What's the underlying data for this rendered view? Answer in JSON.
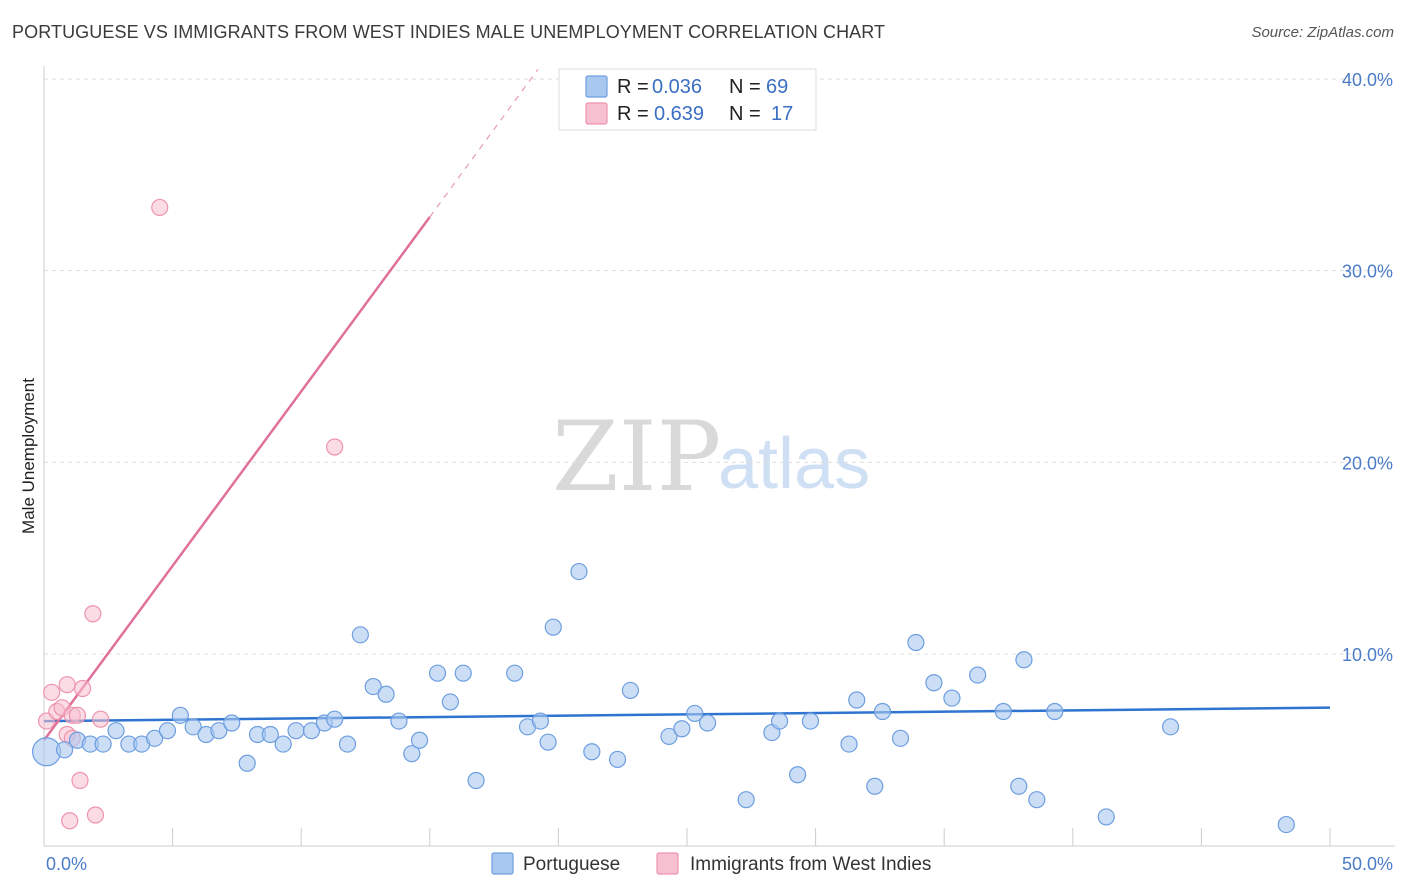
{
  "header": {
    "title": "PORTUGUESE VS IMMIGRANTS FROM WEST INDIES MALE UNEMPLOYMENT CORRELATION CHART",
    "source": "Source: ZipAtlas.com"
  },
  "watermark": {
    "zip": "ZIP",
    "atlas": "atlas"
  },
  "colors": {
    "portuguese_fill": "#a9c8f0",
    "portuguese_stroke": "#6d9ee0",
    "portuguese_line": "#2f74d0",
    "westindies_fill": "#f7c0d0",
    "westindies_stroke": "#ee93ad",
    "westindies_line": "#e0709a",
    "axis_label": "#4a7cc7",
    "grid": "#dddddd"
  },
  "legend": {
    "rows": [
      {
        "r_label": "R = ",
        "r_value": "0.036",
        "n_label": "N = ",
        "n_value": "69"
      },
      {
        "r_label": "R = ",
        "r_value": "0.639",
        "n_label": "N = ",
        "n_value": "17"
      }
    ]
  },
  "chart_data": {
    "type": "scatter",
    "title": "PORTUGUESE VS IMMIGRANTS FROM WEST INDIES MALE UNEMPLOYMENT CORRELATION CHART",
    "xlabel": "",
    "ylabel": "Male Unemployment",
    "xlim": [
      0,
      50
    ],
    "ylim": [
      0,
      40
    ],
    "x_tick_labels": [
      "0.0%",
      "50.0%"
    ],
    "y_ticks": [
      10,
      20,
      30,
      40
    ],
    "y_tick_labels": [
      "10.0%",
      "20.0%",
      "30.0%",
      "40.0%"
    ],
    "x_ticks_minor": [
      0,
      5,
      10,
      15,
      20,
      25,
      30,
      35,
      40,
      45,
      50
    ],
    "legend_position": "bottom",
    "series": [
      {
        "name": "Portuguese",
        "R": 0.036,
        "N": 69,
        "trend": {
          "x0": 0,
          "y0": 6.5,
          "x1": 50,
          "y1": 7.2
        },
        "points": [
          [
            0.1,
            4.9
          ],
          [
            0.8,
            5.0
          ],
          [
            1.3,
            5.5
          ],
          [
            1.8,
            5.3
          ],
          [
            2.3,
            5.3
          ],
          [
            2.8,
            6.0
          ],
          [
            3.3,
            5.3
          ],
          [
            3.8,
            5.3
          ],
          [
            4.3,
            5.6
          ],
          [
            4.8,
            6.0
          ],
          [
            5.3,
            6.8
          ],
          [
            5.8,
            6.2
          ],
          [
            6.3,
            5.8
          ],
          [
            6.8,
            6.0
          ],
          [
            7.3,
            6.4
          ],
          [
            7.9,
            4.3
          ],
          [
            8.3,
            5.8
          ],
          [
            8.8,
            5.8
          ],
          [
            9.3,
            5.3
          ],
          [
            9.8,
            6.0
          ],
          [
            10.4,
            6.0
          ],
          [
            10.9,
            6.4
          ],
          [
            11.3,
            6.6
          ],
          [
            11.8,
            5.3
          ],
          [
            12.3,
            11.0
          ],
          [
            12.8,
            8.3
          ],
          [
            13.3,
            7.9
          ],
          [
            13.8,
            6.5
          ],
          [
            14.3,
            4.8
          ],
          [
            14.6,
            5.5
          ],
          [
            15.3,
            9.0
          ],
          [
            15.8,
            7.5
          ],
          [
            16.3,
            9.0
          ],
          [
            16.8,
            3.4
          ],
          [
            18.3,
            9.0
          ],
          [
            18.8,
            6.2
          ],
          [
            19.3,
            6.5
          ],
          [
            19.6,
            5.4
          ],
          [
            19.8,
            11.4
          ],
          [
            20.8,
            14.3
          ],
          [
            21.3,
            4.9
          ],
          [
            22.3,
            4.5
          ],
          [
            22.8,
            8.1
          ],
          [
            24.3,
            5.7
          ],
          [
            24.8,
            6.1
          ],
          [
            25.3,
            6.9
          ],
          [
            25.8,
            6.4
          ],
          [
            27.3,
            2.4
          ],
          [
            28.3,
            5.9
          ],
          [
            28.6,
            6.5
          ],
          [
            29.3,
            3.7
          ],
          [
            29.8,
            6.5
          ],
          [
            31.3,
            5.3
          ],
          [
            31.6,
            7.6
          ],
          [
            32.3,
            3.1
          ],
          [
            32.6,
            7.0
          ],
          [
            33.3,
            5.6
          ],
          [
            33.9,
            10.6
          ],
          [
            34.6,
            8.5
          ],
          [
            35.3,
            7.7
          ],
          [
            36.3,
            8.9
          ],
          [
            37.3,
            7.0
          ],
          [
            37.9,
            3.1
          ],
          [
            38.1,
            9.7
          ],
          [
            38.6,
            2.4
          ],
          [
            39.3,
            7.0
          ],
          [
            41.3,
            1.5
          ],
          [
            43.8,
            6.2
          ],
          [
            48.3,
            1.1
          ]
        ]
      },
      {
        "name": "Immigrants from West Indies",
        "R": 0.639,
        "N": 17,
        "trend": {
          "x0": 0,
          "y0": 5.5,
          "x1": 15,
          "y1": 32.8,
          "dash_to_x": 19.2,
          "dash_to_y": 40.5
        },
        "points": [
          [
            0.1,
            6.5
          ],
          [
            0.3,
            8.0
          ],
          [
            0.5,
            7.0
          ],
          [
            0.7,
            7.2
          ],
          [
            0.9,
            5.8
          ],
          [
            1.1,
            6.8
          ],
          [
            0.9,
            8.4
          ],
          [
            1.5,
            8.2
          ],
          [
            1.1,
            5.6
          ],
          [
            1.3,
            6.8
          ],
          [
            1.4,
            3.4
          ],
          [
            1.0,
            1.3
          ],
          [
            2.0,
            1.6
          ],
          [
            2.2,
            6.6
          ],
          [
            1.9,
            12.1
          ],
          [
            4.5,
            33.3
          ],
          [
            11.3,
            20.8
          ]
        ]
      }
    ]
  }
}
